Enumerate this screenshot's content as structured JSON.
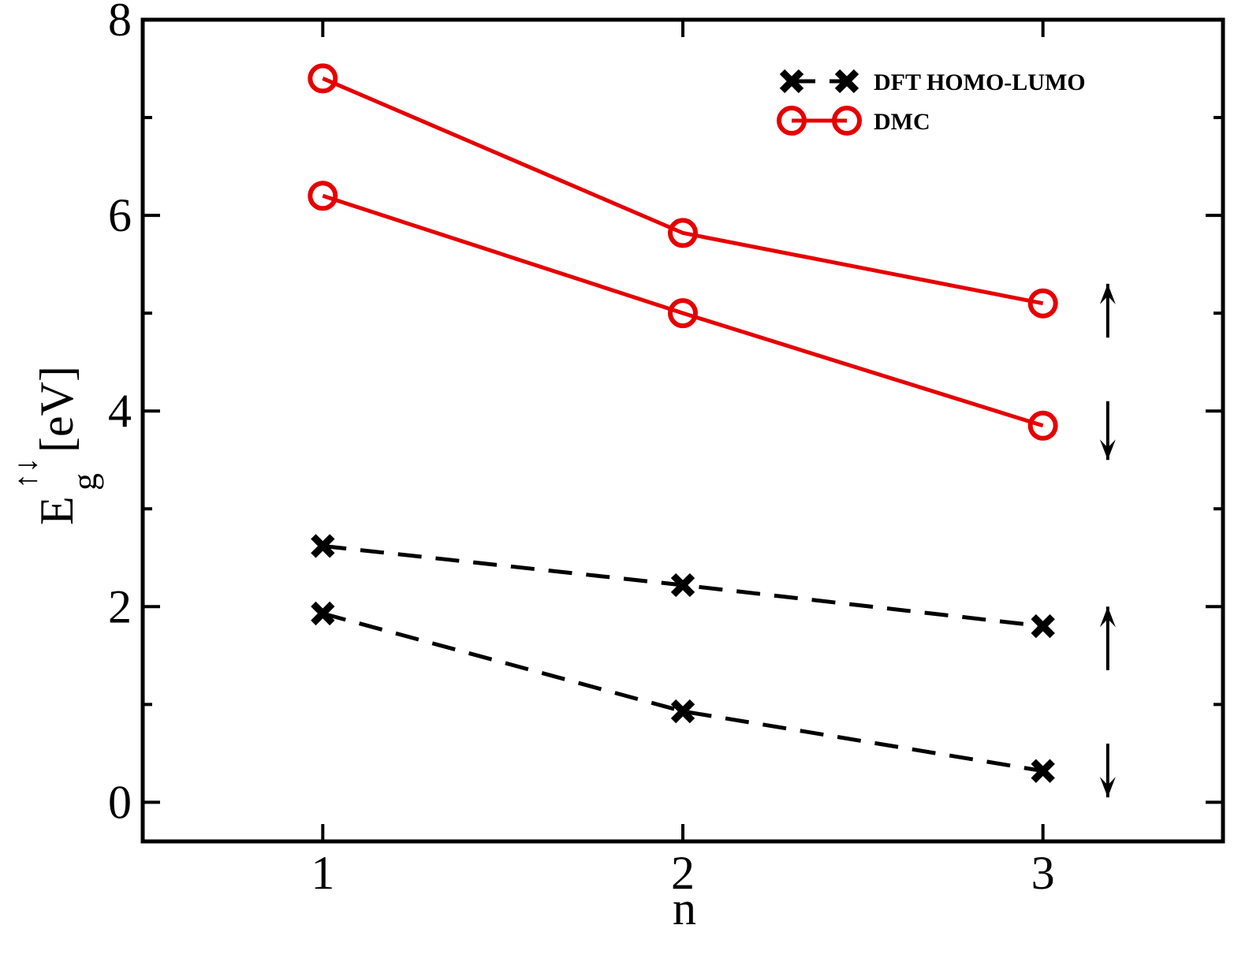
{
  "chart_data": {
    "type": "line",
    "xlabel": "n",
    "ylabel": {
      "main": "E",
      "subscript": "g",
      "superscript": "↑↓",
      "unit": "[eV]"
    },
    "xlim": [
      0.5,
      3.5
    ],
    "ylim": [
      -0.4,
      8
    ],
    "x_ticks": [
      1,
      2,
      3
    ],
    "y_ticks": [
      0,
      2,
      4,
      6,
      8
    ],
    "y_minor_step": 1,
    "grid": false,
    "legend": {
      "placement": "top-right",
      "entries": [
        {
          "label": "DFT HOMO-LUMO",
          "series": "dft"
        },
        {
          "label": "DMC",
          "series": "dmc"
        }
      ]
    },
    "series": [
      {
        "group": "dft",
        "spin": "up",
        "x": [
          1,
          2,
          3
        ],
        "y": [
          2.62,
          2.22,
          1.8
        ]
      },
      {
        "group": "dft",
        "spin": "down",
        "x": [
          1,
          2,
          3
        ],
        "y": [
          1.93,
          0.93,
          0.32
        ]
      },
      {
        "group": "dmc",
        "spin": "up",
        "x": [
          1,
          2,
          3
        ],
        "y": [
          7.4,
          5.82,
          5.1
        ]
      },
      {
        "group": "dmc",
        "spin": "down",
        "x": [
          1,
          2,
          3
        ],
        "y": [
          6.2,
          5.0,
          3.85
        ]
      }
    ],
    "spin_arrows": [
      {
        "direction": "up",
        "x": 3.18,
        "y_from": 4.75,
        "y_to": 5.3
      },
      {
        "direction": "down",
        "x": 3.18,
        "y_from": 4.1,
        "y_to": 3.5
      },
      {
        "direction": "up",
        "x": 3.18,
        "y_from": 1.35,
        "y_to": 2.0
      },
      {
        "direction": "down",
        "x": 3.18,
        "y_from": 0.6,
        "y_to": 0.05
      }
    ],
    "colors": {
      "dft": "#000000",
      "dmc": "#e60000",
      "axis": "#000000"
    }
  }
}
